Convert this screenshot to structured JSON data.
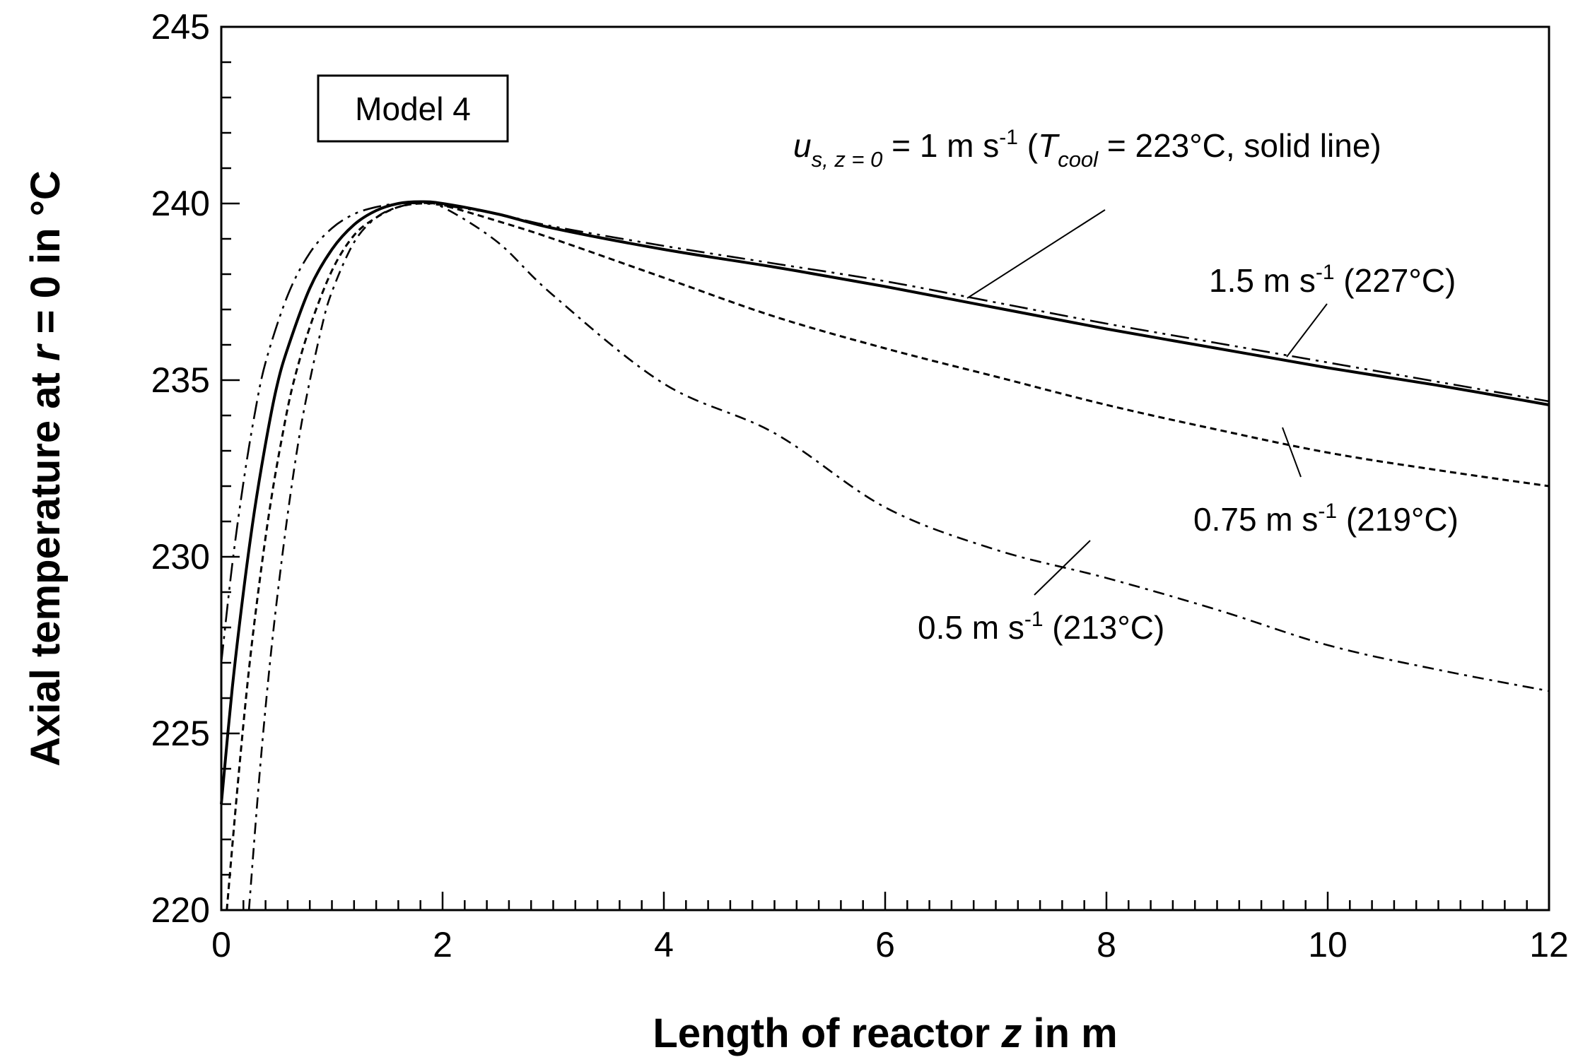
{
  "chart_data": {
    "type": "line",
    "title": "",
    "xlabel": {
      "pre": "Length of reactor ",
      "var": "z",
      "post": " in m"
    },
    "ylabel": {
      "pre": "Axial temperature at ",
      "var": "r",
      "post": " = 0 in °C"
    },
    "xlim": [
      0,
      12
    ],
    "ylim": [
      220,
      245
    ],
    "x_ticks": [
      "0",
      "2",
      "4",
      "6",
      "8",
      "10",
      "12"
    ],
    "y_ticks": [
      "220",
      "225",
      "230",
      "235",
      "240",
      "245"
    ],
    "x_minor_step": 0.2,
    "y_minor_step": 1,
    "grid": false,
    "model_label": "Model 4",
    "series": [
      {
        "name": "1 m s-1 (223°C)",
        "style": "solid",
        "x": [
          0,
          0.1,
          0.2,
          0.3,
          0.4,
          0.5,
          0.6,
          0.8,
          1.0,
          1.2,
          1.4,
          1.6,
          1.8,
          2.0,
          2.5,
          3,
          4,
          5,
          6,
          7,
          8,
          9,
          10,
          11,
          12
        ],
        "y": [
          223,
          226.3,
          229,
          231.3,
          233.2,
          234.8,
          235.9,
          237.6,
          238.7,
          239.4,
          239.8,
          240.0,
          240.05,
          240.0,
          239.7,
          239.3,
          238.7,
          238.2,
          237.65,
          237.05,
          236.45,
          235.9,
          235.35,
          234.85,
          234.3
        ]
      },
      {
        "name": "1.5 m s-1 (227°C)",
        "style": "long-dash-dot-dot",
        "x": [
          0,
          0.1,
          0.2,
          0.3,
          0.4,
          0.6,
          0.8,
          1.0,
          1.2,
          1.4,
          1.6,
          1.8,
          2.0,
          2.5,
          3,
          4,
          5,
          6,
          7,
          8,
          9,
          10,
          11,
          12
        ],
        "y": [
          227,
          229.8,
          232.1,
          234,
          235.5,
          237.4,
          238.6,
          239.3,
          239.7,
          239.9,
          240.0,
          240.0,
          239.95,
          239.7,
          239.35,
          238.8,
          238.3,
          237.8,
          237.2,
          236.6,
          236.05,
          235.5,
          234.95,
          234.4
        ]
      },
      {
        "name": "0.75 m s-1 (219°C)",
        "style": "short-dash",
        "x": [
          0.05,
          0.15,
          0.25,
          0.35,
          0.45,
          0.55,
          0.65,
          0.8,
          1.0,
          1.2,
          1.4,
          1.6,
          1.8,
          2.0,
          2.5,
          3,
          4,
          5,
          6,
          7,
          8,
          9,
          10,
          11,
          12
        ],
        "y": [
          220,
          223.6,
          226.8,
          229.4,
          231.6,
          233.4,
          234.9,
          236.5,
          238.1,
          239.1,
          239.6,
          239.9,
          240.0,
          239.95,
          239.5,
          239.0,
          237.9,
          236.8,
          235.9,
          235.1,
          234.3,
          233.6,
          232.95,
          232.45,
          232.0
        ]
      },
      {
        "name": "0.5 m s-1 (213°C)",
        "style": "dash-dot",
        "x": [
          0.25,
          0.35,
          0.45,
          0.55,
          0.65,
          0.75,
          0.9,
          1.0,
          1.2,
          1.4,
          1.6,
          1.8,
          2.0,
          2.5,
          3,
          4,
          5,
          6,
          7,
          8,
          9,
          10,
          11,
          12
        ],
        "y": [
          220,
          224.0,
          227.3,
          230.0,
          232.3,
          234.2,
          236.4,
          237.5,
          238.9,
          239.6,
          239.9,
          240.0,
          239.9,
          238.9,
          237.4,
          234.9,
          233.5,
          231.4,
          230.2,
          229.4,
          228.5,
          227.5,
          226.8,
          226.2
        ]
      }
    ],
    "annotations": [
      {
        "id": "solid",
        "text_a": "u",
        "sub_a": "s, z = 0",
        "text_b": " = 1 m s",
        "sup": "-1",
        "text_c": " (",
        "text_d": "T",
        "sub_d": "cool",
        "text_e": " = 223°C, solid line)"
      },
      {
        "id": "v15",
        "text": "1.5 m s",
        "sup": "-1",
        "tail": " (227°C)"
      },
      {
        "id": "v075",
        "text": "0.75 m s",
        "sup": "-1",
        "tail": " (219°C)"
      },
      {
        "id": "v05",
        "text": "0.5 m s",
        "sup": "-1",
        "tail": " (213°C)"
      }
    ]
  }
}
